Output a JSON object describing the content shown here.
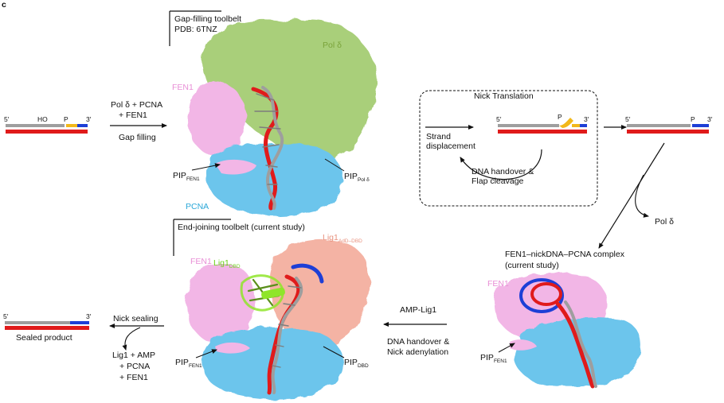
{
  "panel_letter": "c",
  "colors": {
    "template_strand": "#e01b1b",
    "primer_strand": "#9e9e9e",
    "downstream_blue": "#1d3fd6",
    "flap_yellow": "#f2b81a",
    "pol_delta": "#a9cf7a",
    "fen1": "#f2b6e6",
    "pcna": "#6cc5ec",
    "lig1_dbd": "#8fe52a",
    "lig1_aid": "#f4b3a4"
  },
  "gap_toolbelt": {
    "title": "Gap-filling toolbelt",
    "pdb": "PDB: 6TNZ",
    "pol_label": "Pol δ",
    "fen1_label": "FEN1",
    "pcna_label": "PCNA",
    "pip_fen1": "PIP",
    "pip_fen1_sub": "FEN1",
    "pip_pol": "PIP",
    "pip_pol_sub": "Pol δ"
  },
  "substrate": {
    "five_prime": "5′",
    "three_prime": "3′",
    "ho": "HO",
    "p": "P"
  },
  "step_gap_filling": {
    "line1": "Pol δ + PCNA",
    "line2": "+ FEN1",
    "label": "Gap filling"
  },
  "nick_translation": {
    "title": "Nick Translation",
    "strand_line1": "Strand",
    "strand_line2": "displacement",
    "handover_line1": "DNA handover &",
    "handover_line2": "Flap cleavage",
    "five_prime": "5′",
    "three_prime": "3′",
    "p": "P"
  },
  "after_nt": {
    "five_prime": "5′",
    "three_prime": "3′",
    "p": "P",
    "pol_release": "Pol δ"
  },
  "fen1_complex": {
    "title_line1": "FEN1–nickDNA–PCNA complex",
    "title_line2": "(current study)",
    "fen1_label": "FEN1",
    "pip": "PIP",
    "pip_sub": "FEN1"
  },
  "step_handover": {
    "top": "AMP-Lig1",
    "line1": "DNA handover &",
    "line2": "Nick adenylation"
  },
  "end_toolbelt": {
    "title": "End-joining toolbelt (current study)",
    "lig1_dbd": "Lig1",
    "lig1_dbd_sub": "DBD",
    "lig1_aid": "Lig1",
    "lig1_aid_sub": "AdD–DBD",
    "fen1_label": "FEN1",
    "pip_fen1": "PIP",
    "pip_fen1_sub": "FEN1",
    "pip_dbd": "PIP",
    "pip_dbd_sub": "DBD"
  },
  "step_sealing": {
    "label": "Nick sealing",
    "line1": "Lig1 + AMP",
    "line2": "+ PCNA",
    "line3": "+ FEN1"
  },
  "sealed": {
    "five_prime": "5′",
    "three_prime": "3′",
    "label": "Sealed product"
  }
}
